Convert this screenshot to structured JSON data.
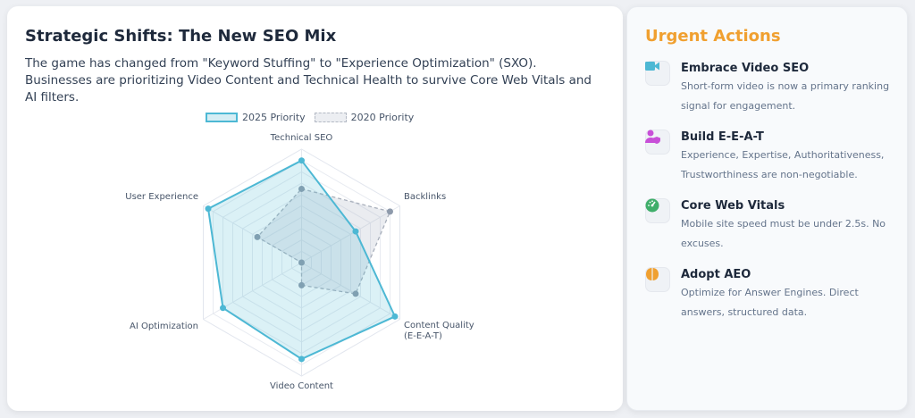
{
  "left": {
    "title": "Strategic Shifts: The New SEO Mix",
    "description": "The game has changed from \"Keyword Stuffing\" to \"Experience Optimization\" (SXO). Businesses are prioritizing Video Content and Technical Health to survive Core Web Vitals and AI filters."
  },
  "chart_data": {
    "type": "radar",
    "categories": [
      "Technical SEO",
      "Backlinks",
      "Content Quality (E-E-A-T)",
      "Video Content",
      "AI Optimization",
      "User Experience"
    ],
    "category_lines": [
      [
        "Technical SEO"
      ],
      [
        "Backlinks"
      ],
      [
        "Content Quality",
        "(E-E-A-T)"
      ],
      [
        "Video Content"
      ],
      [
        "AI Optimization"
      ],
      [
        "User Experience"
      ]
    ],
    "range": [
      0,
      100
    ],
    "grid": true,
    "legend": "top",
    "series": [
      {
        "name": "2025 Priority",
        "values": [
          90,
          55,
          95,
          85,
          80,
          95
        ],
        "color": "#4db8d4",
        "style": "solid"
      },
      {
        "name": "2020 Priority",
        "values": [
          65,
          90,
          55,
          20,
          0,
          45
        ],
        "color": "#94a3b8",
        "style": "dashed"
      }
    ]
  },
  "right": {
    "title": "Urgent Actions",
    "title_color": "#f0a030",
    "items": [
      {
        "icon": "video-camera-icon",
        "color": "#4db8d4",
        "title": "Embrace Video SEO",
        "lines": [
          "Short-form video is now a primary ranking",
          "signal for engagement."
        ]
      },
      {
        "icon": "user-shield-icon",
        "color": "#c84fd8",
        "title": "Build E-E-A-T",
        "lines": [
          "Experience, Expertise, Authoritativeness,",
          "Trustworthiness are non-negotiable."
        ]
      },
      {
        "icon": "gauge-icon",
        "color": "#3fae6a",
        "title": "Core Web Vitals",
        "lines": [
          "Mobile site speed must be under 2.5s. No",
          "excuses."
        ]
      },
      {
        "icon": "brain-icon",
        "color": "#f0a030",
        "title": "Adopt AEO",
        "lines": [
          "Optimize for Answer Engines. Direct",
          "answers, structured data."
        ]
      }
    ]
  }
}
